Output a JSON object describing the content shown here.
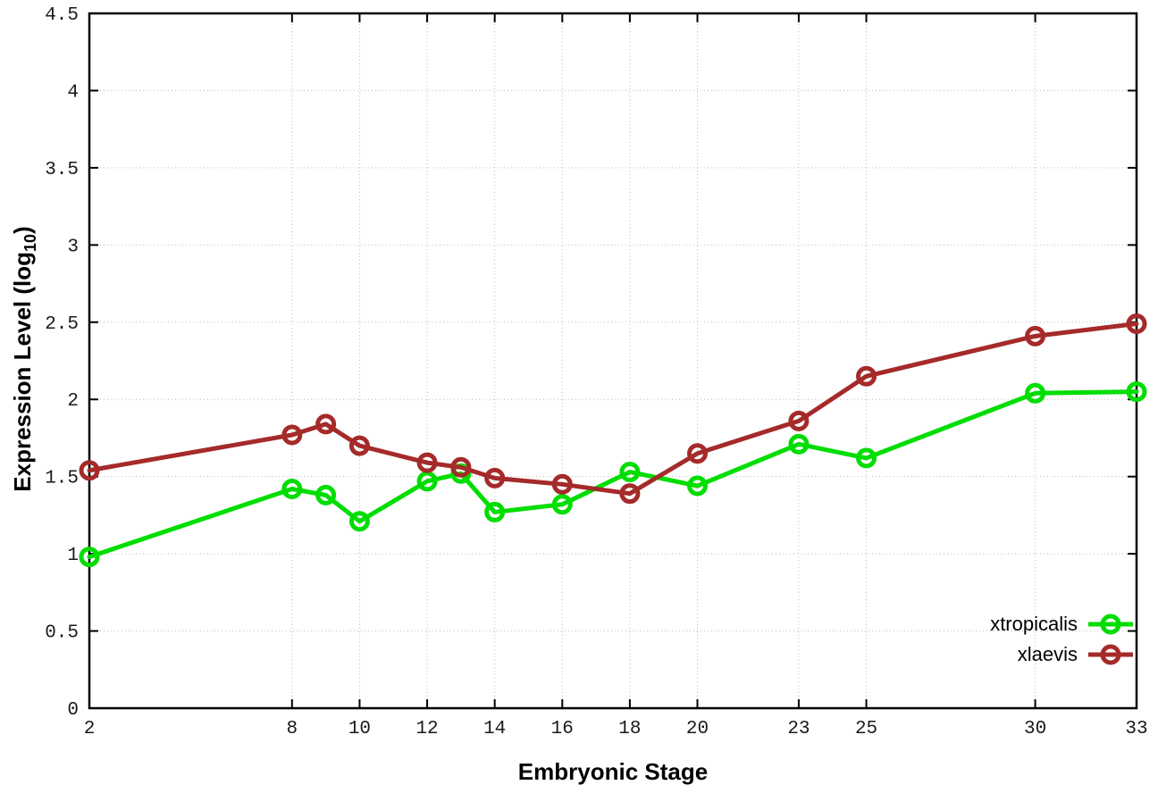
{
  "chart_data": {
    "type": "line",
    "title": "",
    "xlabel": "Embryonic Stage",
    "ylabel": "Expression Level (log10)",
    "ylabel_prefix": "Expression Level (log",
    "ylabel_sub": "10",
    "ylabel_suffix": ")",
    "x": [
      2,
      8,
      9,
      10,
      12,
      13,
      14,
      16,
      18,
      20,
      23,
      25,
      30,
      33
    ],
    "series": [
      {
        "name": "xtropicalis",
        "color": "#00dd00",
        "values": [
          0.98,
          1.42,
          1.38,
          1.21,
          1.47,
          1.52,
          1.27,
          1.32,
          1.53,
          1.44,
          1.71,
          1.62,
          2.04,
          2.05
        ]
      },
      {
        "name": "xlaevis",
        "color": "#a52a2a",
        "values": [
          1.54,
          1.77,
          1.84,
          1.7,
          1.59,
          1.56,
          1.49,
          1.45,
          1.39,
          1.65,
          1.86,
          2.15,
          2.41,
          2.49
        ]
      }
    ],
    "xlim": [
      2,
      33
    ],
    "ylim": [
      0,
      4.5
    ],
    "xticks": [
      2,
      8,
      10,
      12,
      14,
      16,
      18,
      20,
      23,
      25,
      30,
      33
    ],
    "xtick_labels": [
      "2",
      "8",
      "10",
      "12",
      "14",
      "16",
      "18",
      "20",
      "23",
      "25",
      "30",
      "33"
    ],
    "yticks": [
      0,
      0.5,
      1,
      1.5,
      2,
      2.5,
      3,
      3.5,
      4,
      4.5
    ],
    "ytick_labels": [
      "0",
      "0.5",
      "1",
      "1.5",
      "2",
      "2.5",
      "3",
      "3.5",
      "4",
      "4.5"
    ],
    "grid": true,
    "legend_position": "bottom-right",
    "colors": {
      "border": "#000000",
      "grid": "#bdbdbd",
      "tick_text": "#1a1a1a",
      "background": "#ffffff"
    }
  }
}
